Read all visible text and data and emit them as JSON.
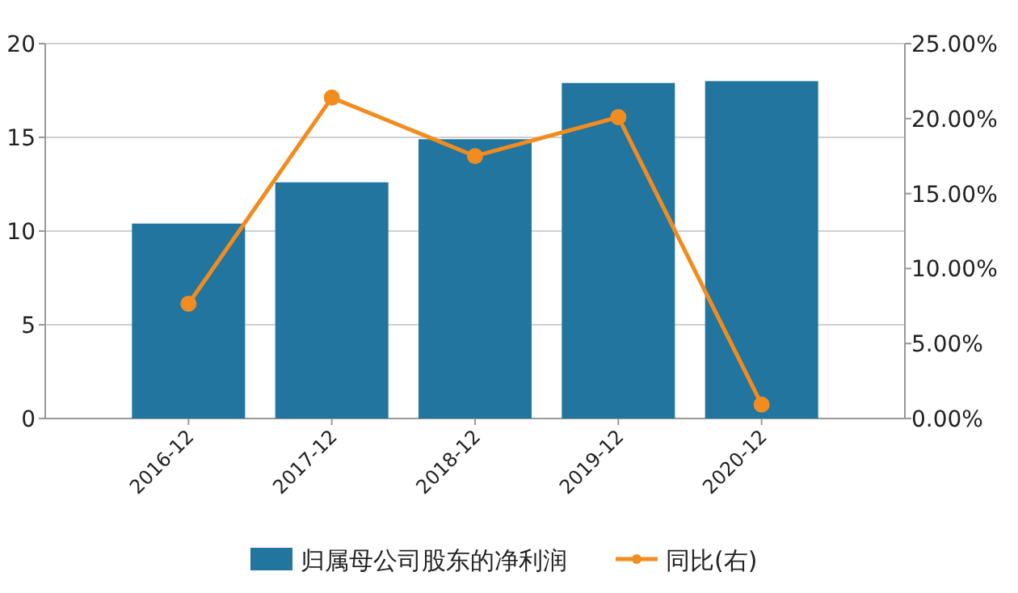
{
  "chart_data": {
    "type": "bar",
    "categories": [
      "2016-12",
      "2017-12",
      "2018-12",
      "2019-12",
      "2020-12"
    ],
    "series": [
      {
        "name": "归属母公司股东的净利润",
        "color": "#21759f",
        "values": [
          10.4,
          12.6,
          14.9,
          17.9,
          18.0
        ]
      },
      {
        "name": "同比(右)",
        "type": "line",
        "axis": "y2",
        "color": "#f28c1e",
        "marker": "circle",
        "values": [
          7.65,
          21.4,
          17.5,
          20.1,
          0.93
        ]
      }
    ],
    "ylim": [
      0,
      20
    ],
    "yticks": [
      0,
      5,
      10,
      15,
      20
    ],
    "y2lim": [
      0,
      25
    ],
    "y2ticks": [
      {
        "value": 0,
        "label": "0.00%"
      },
      {
        "value": 5,
        "label": "5.00%"
      },
      {
        "value": 10,
        "label": "10.00%"
      },
      {
        "value": 15,
        "label": "15.00%"
      },
      {
        "value": 20,
        "label": "20.00%"
      },
      {
        "value": 25,
        "label": "25.00%"
      }
    ],
    "grid": "y",
    "legend": "bottom"
  }
}
